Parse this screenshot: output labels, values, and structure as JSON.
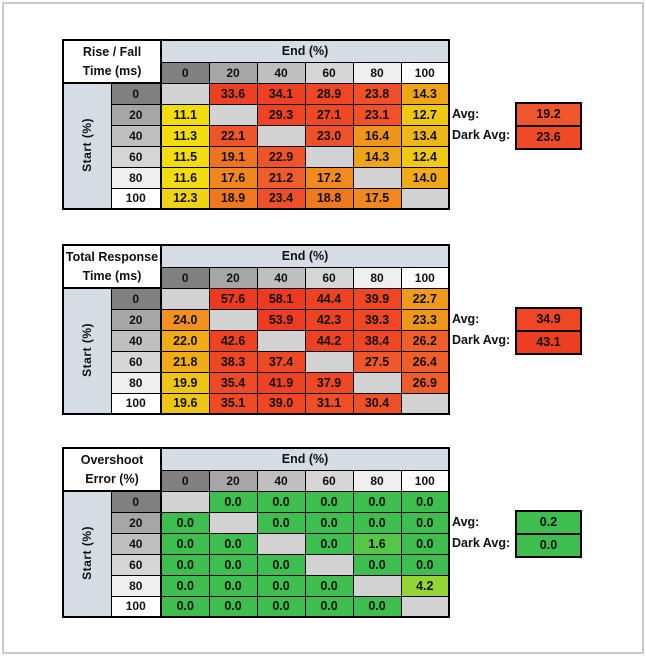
{
  "page": {
    "background": "#FFFFFF",
    "frame_border": "#C9C9C9"
  },
  "shared": {
    "header_shades": [
      "#808080",
      "#A6A6A6",
      "#BFBFBF",
      "#D6D6D6",
      "#EFEFEF",
      "#FFFFFF"
    ],
    "band_color": "#D6DCE4",
    "blank_cell_color": "#D2D2D2",
    "grid_color": "#000000"
  },
  "tables": [
    {
      "id": "rise-fall",
      "title_line1": "Rise / Fall",
      "title_line2": "Time (ms)",
      "col_group_label": "End (%)",
      "row_group_label": "Start (%)",
      "col_headers": [
        "0",
        "20",
        "40",
        "60",
        "80",
        "100"
      ],
      "row_headers": [
        "0",
        "20",
        "40",
        "60",
        "80",
        "100"
      ],
      "rows": [
        [
          null,
          {
            "v": "33.6",
            "c": "#EE4023"
          },
          {
            "v": "34.1",
            "c": "#EE4023"
          },
          {
            "v": "28.9",
            "c": "#EF4624"
          },
          {
            "v": "23.8",
            "c": "#F05029"
          },
          {
            "v": "14.3",
            "c": "#F0A418"
          }
        ],
        [
          {
            "v": "11.1",
            "c": "#F2DC0E"
          },
          null,
          {
            "v": "29.3",
            "c": "#EF4423"
          },
          {
            "v": "27.1",
            "c": "#EF4825"
          },
          {
            "v": "23.1",
            "c": "#F05129"
          },
          {
            "v": "12.7",
            "c": "#EFC814"
          }
        ],
        [
          {
            "v": "11.3",
            "c": "#F2DC0E"
          },
          {
            "v": "22.1",
            "c": "#F05529"
          },
          null,
          {
            "v": "23.0",
            "c": "#F05129"
          },
          {
            "v": "16.4",
            "c": "#F1941C"
          },
          {
            "v": "13.4",
            "c": "#F0B516"
          }
        ],
        [
          {
            "v": "11.5",
            "c": "#F2DC0E"
          },
          {
            "v": "19.1",
            "c": "#F1731F"
          },
          {
            "v": "22.9",
            "c": "#F05229"
          },
          null,
          {
            "v": "14.3",
            "c": "#F0A418"
          },
          {
            "v": "12.4",
            "c": "#EFC914"
          }
        ],
        [
          {
            "v": "11.6",
            "c": "#F2DC0E"
          },
          {
            "v": "17.6",
            "c": "#F2871E"
          },
          {
            "v": "21.2",
            "c": "#F05C2B"
          },
          {
            "v": "17.2",
            "c": "#F28A1E"
          },
          null,
          {
            "v": "14.0",
            "c": "#F0A917"
          }
        ],
        [
          {
            "v": "12.3",
            "c": "#F0D310"
          },
          {
            "v": "18.9",
            "c": "#F1771F"
          },
          {
            "v": "23.4",
            "c": "#F05029"
          },
          {
            "v": "18.8",
            "c": "#F1781F"
          },
          {
            "v": "17.5",
            "c": "#F2881E"
          },
          null
        ]
      ],
      "avg_label": "Avg:",
      "dark_avg_label": "Dark Avg:",
      "avg": {
        "v": "19.2",
        "c": "#F1572E"
      },
      "dark_avg": {
        "v": "23.6",
        "c": "#F04B28"
      }
    },
    {
      "id": "total-response",
      "title_line1": "Total Response",
      "title_line2": "Time (ms)",
      "col_group_label": "End (%)",
      "row_group_label": "Start (%)",
      "col_headers": [
        "0",
        "20",
        "40",
        "60",
        "80",
        "100"
      ],
      "row_headers": [
        "0",
        "20",
        "40",
        "60",
        "80",
        "100"
      ],
      "rows": [
        [
          null,
          {
            "v": "57.6",
            "c": "#ED3A21"
          },
          {
            "v": "58.1",
            "c": "#ED3A21"
          },
          {
            "v": "44.4",
            "c": "#EE4223"
          },
          {
            "v": "39.9",
            "c": "#EF4624"
          },
          {
            "v": "22.7",
            "c": "#F0991B"
          }
        ],
        [
          {
            "v": "24.0",
            "c": "#F2911D"
          },
          null,
          {
            "v": "53.9",
            "c": "#ED3C22"
          },
          {
            "v": "42.3",
            "c": "#EE4323"
          },
          {
            "v": "39.3",
            "c": "#EF4724"
          },
          {
            "v": "23.3",
            "c": "#F0971B"
          }
        ],
        [
          {
            "v": "22.0",
            "c": "#F0AB16"
          },
          {
            "v": "42.6",
            "c": "#EE4223"
          },
          null,
          {
            "v": "44.2",
            "c": "#EE4223"
          },
          {
            "v": "38.4",
            "c": "#EF4724"
          },
          {
            "v": "26.2",
            "c": "#F05F2B"
          }
        ],
        [
          {
            "v": "21.8",
            "c": "#F0AC16"
          },
          {
            "v": "38.3",
            "c": "#EF4724"
          },
          {
            "v": "37.4",
            "c": "#EF4825"
          },
          null,
          {
            "v": "27.5",
            "c": "#F05829"
          },
          {
            "v": "26.4",
            "c": "#F05E2B"
          }
        ],
        [
          {
            "v": "19.9",
            "c": "#EFC513"
          },
          {
            "v": "35.4",
            "c": "#EF4926"
          },
          {
            "v": "41.9",
            "c": "#EE4323"
          },
          {
            "v": "37.9",
            "c": "#EF4825"
          },
          null,
          {
            "v": "26.9",
            "c": "#F05C2A"
          }
        ],
        [
          {
            "v": "19.6",
            "c": "#EFC513"
          },
          {
            "v": "35.1",
            "c": "#EF4A26"
          },
          {
            "v": "39.0",
            "c": "#EF4624"
          },
          {
            "v": "31.1",
            "c": "#F04E27"
          },
          {
            "v": "30.4",
            "c": "#F05028"
          },
          null
        ]
      ],
      "avg_label": "Avg:",
      "dark_avg_label": "Dark Avg:",
      "avg": {
        "v": "34.9",
        "c": "#EF4625"
      },
      "dark_avg": {
        "v": "43.1",
        "c": "#EE3E22"
      }
    },
    {
      "id": "overshoot",
      "title_line1": "Overshoot",
      "title_line2": "Error (%)",
      "col_group_label": "End (%)",
      "row_group_label": "Start (%)",
      "col_headers": [
        "0",
        "20",
        "40",
        "60",
        "80",
        "100"
      ],
      "row_headers": [
        "0",
        "20",
        "40",
        "60",
        "80",
        "100"
      ],
      "rows": [
        [
          null,
          {
            "v": "0.0",
            "c": "#3EBE4E"
          },
          {
            "v": "0.0",
            "c": "#3EBE4E"
          },
          {
            "v": "0.0",
            "c": "#3EBE4E"
          },
          {
            "v": "0.0",
            "c": "#3EBE4E"
          },
          {
            "v": "0.0",
            "c": "#3EBE4E"
          }
        ],
        [
          {
            "v": "0.0",
            "c": "#3EBE4E"
          },
          null,
          {
            "v": "0.0",
            "c": "#3EBE4E"
          },
          {
            "v": "0.0",
            "c": "#3EBE4E"
          },
          {
            "v": "0.0",
            "c": "#3EBE4E"
          },
          {
            "v": "0.0",
            "c": "#3EBE4E"
          }
        ],
        [
          {
            "v": "0.0",
            "c": "#3EBE4E"
          },
          {
            "v": "0.0",
            "c": "#3EBE4E"
          },
          null,
          {
            "v": "0.0",
            "c": "#3EBE4E"
          },
          {
            "v": "1.6",
            "c": "#54C746"
          },
          {
            "v": "0.0",
            "c": "#3EBE4E"
          }
        ],
        [
          {
            "v": "0.0",
            "c": "#3EBE4E"
          },
          {
            "v": "0.0",
            "c": "#3EBE4E"
          },
          {
            "v": "0.0",
            "c": "#3EBE4E"
          },
          null,
          {
            "v": "0.0",
            "c": "#3EBE4E"
          },
          {
            "v": "0.0",
            "c": "#3EBE4E"
          }
        ],
        [
          {
            "v": "0.0",
            "c": "#3EBE4E"
          },
          {
            "v": "0.0",
            "c": "#3EBE4E"
          },
          {
            "v": "0.0",
            "c": "#3EBE4E"
          },
          {
            "v": "0.0",
            "c": "#3EBE4E"
          },
          null,
          {
            "v": "4.2",
            "c": "#92D535"
          }
        ],
        [
          {
            "v": "0.0",
            "c": "#3EBE4E"
          },
          {
            "v": "0.0",
            "c": "#3EBE4E"
          },
          {
            "v": "0.0",
            "c": "#3EBE4E"
          },
          {
            "v": "0.0",
            "c": "#3EBE4E"
          },
          {
            "v": "0.0",
            "c": "#3EBE4E"
          },
          null
        ]
      ],
      "avg_label": "Avg:",
      "dark_avg_label": "Dark Avg:",
      "avg": {
        "v": "0.2",
        "c": "#3EBE4E"
      },
      "dark_avg": {
        "v": "0.0",
        "c": "#3EBE4E"
      }
    }
  ]
}
